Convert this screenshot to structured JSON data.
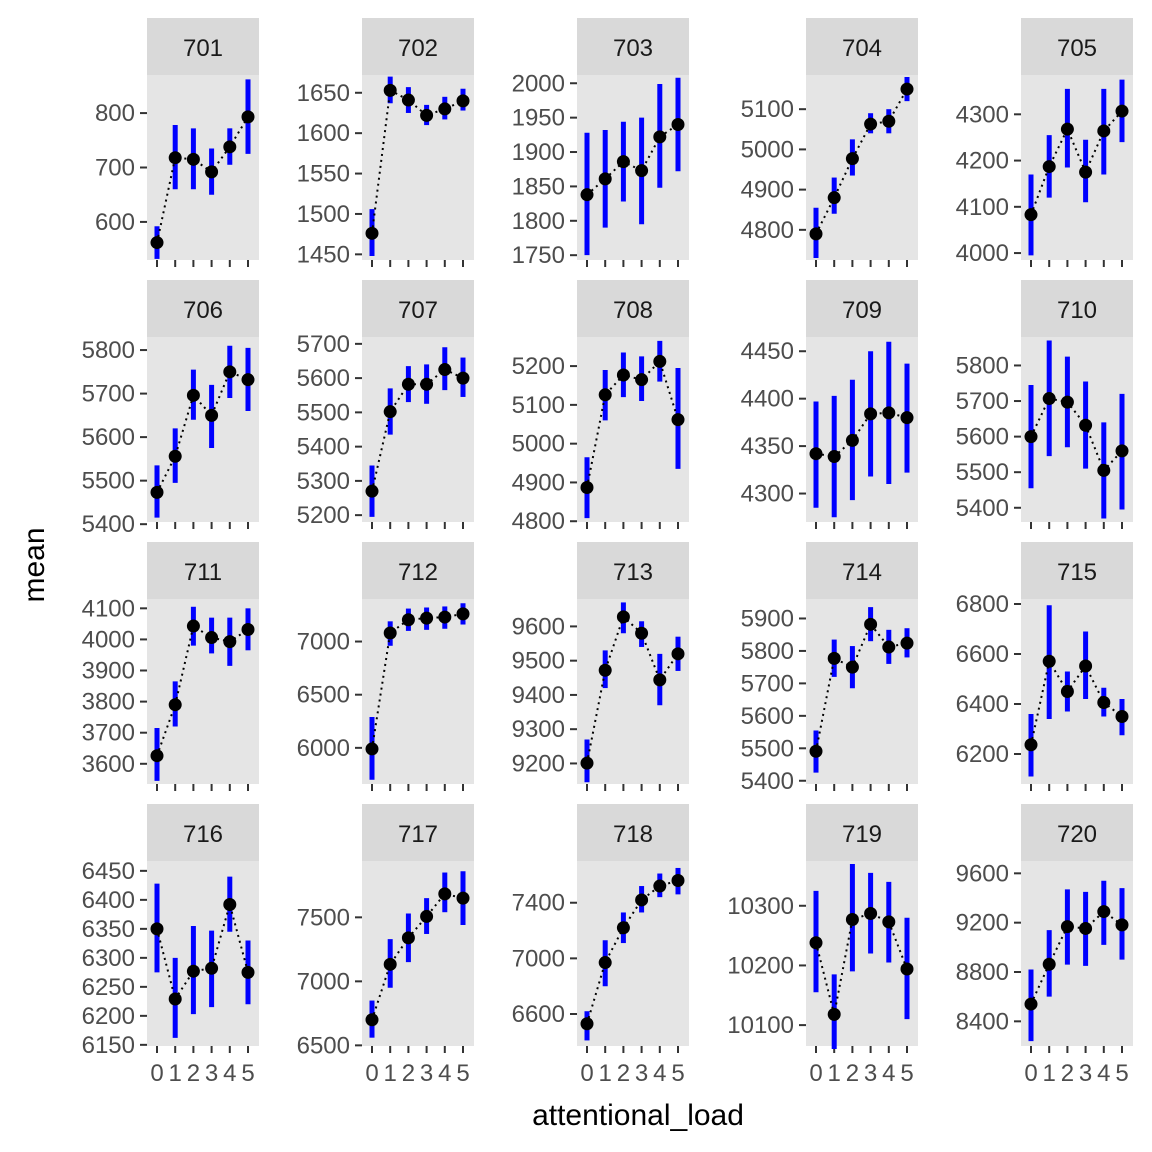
{
  "chart_data": {
    "type": "scatter",
    "facet_by": "participant",
    "xlabel": "attentional_load",
    "ylabel": "mean",
    "x": [
      0,
      1,
      2,
      3,
      4,
      5
    ],
    "x_tick_labels": [
      "0",
      "1",
      "2",
      "3",
      "4",
      "5"
    ],
    "grid": false,
    "legend": "none",
    "point_color": "#000000",
    "errorbar_color": "#0000ff",
    "line_style": "dotted",
    "panel_background": "#e5e5e5",
    "strip_background": "#d9d9d9",
    "panels": [
      {
        "label": "701",
        "ylim": [
          530,
          870
        ],
        "yticks": [
          600,
          700,
          800
        ],
        "mean": [
          562,
          718,
          715,
          692,
          738,
          793
        ],
        "lower": [
          532,
          660,
          660,
          650,
          705,
          725
        ],
        "upper": [
          592,
          778,
          772,
          735,
          772,
          862
        ]
      },
      {
        "label": "702",
        "ylim": [
          1443,
          1672
        ],
        "yticks": [
          1450,
          1500,
          1550,
          1600,
          1650
        ],
        "mean": [
          1476,
          1653,
          1641,
          1622,
          1630,
          1640
        ],
        "lower": [
          1448,
          1637,
          1625,
          1610,
          1617,
          1628
        ],
        "upper": [
          1506,
          1670,
          1657,
          1635,
          1645,
          1655
        ]
      },
      {
        "label": "703",
        "ylim": [
          1743,
          2012
        ],
        "yticks": [
          1750,
          1800,
          1850,
          1900,
          1950,
          2000
        ],
        "mean": [
          1838,
          1861,
          1886,
          1873,
          1922,
          1940
        ],
        "lower": [
          1750,
          1790,
          1828,
          1795,
          1848,
          1872
        ],
        "upper": [
          1928,
          1932,
          1944,
          1950,
          1999,
          2008
        ]
      },
      {
        "label": "704",
        "ylim": [
          4725,
          5185
        ],
        "yticks": [
          4800,
          4900,
          5000,
          5100
        ],
        "mean": [
          4790,
          4880,
          4977,
          5063,
          5070,
          5150
        ],
        "lower": [
          4730,
          4840,
          4935,
          5040,
          5040,
          5120
        ],
        "upper": [
          4855,
          4930,
          5025,
          5090,
          5100,
          5180
        ]
      },
      {
        "label": "705",
        "ylim": [
          3985,
          4385
        ],
        "yticks": [
          4000,
          4100,
          4200,
          4300
        ],
        "mean": [
          4083,
          4187,
          4268,
          4175,
          4264,
          4307
        ],
        "lower": [
          3995,
          4120,
          4185,
          4110,
          4170,
          4240
        ],
        "upper": [
          4170,
          4255,
          4355,
          4245,
          4355,
          4375
        ]
      },
      {
        "label": "706",
        "ylim": [
          5405,
          5830
        ],
        "yticks": [
          5400,
          5500,
          5600,
          5700,
          5800
        ],
        "mean": [
          5473,
          5556,
          5696,
          5650,
          5750,
          5732
        ],
        "lower": [
          5415,
          5495,
          5640,
          5575,
          5690,
          5660
        ],
        "upper": [
          5535,
          5620,
          5755,
          5720,
          5810,
          5805
        ]
      },
      {
        "label": "707",
        "ylim": [
          5180,
          5720
        ],
        "yticks": [
          5200,
          5300,
          5400,
          5500,
          5600,
          5700
        ],
        "mean": [
          5270,
          5502,
          5582,
          5582,
          5625,
          5600
        ],
        "lower": [
          5195,
          5435,
          5530,
          5525,
          5565,
          5545
        ],
        "upper": [
          5345,
          5570,
          5635,
          5640,
          5690,
          5660
        ]
      },
      {
        "label": "708",
        "ylim": [
          4798,
          5275
        ],
        "yticks": [
          4800,
          4900,
          5000,
          5100,
          5200
        ],
        "mean": [
          4887,
          5126,
          5177,
          5165,
          5212,
          5062
        ],
        "lower": [
          4808,
          5060,
          5120,
          5110,
          5160,
          4935
        ],
        "upper": [
          4965,
          5190,
          5235,
          5225,
          5265,
          5195
        ]
      },
      {
        "label": "709",
        "ylim": [
          4270,
          4465
        ],
        "yticks": [
          4300,
          4350,
          4400,
          4450
        ],
        "mean": [
          4342,
          4339,
          4356,
          4384,
          4385,
          4380
        ],
        "lower": [
          4285,
          4275,
          4293,
          4318,
          4310,
          4322
        ],
        "upper": [
          4397,
          4403,
          4420,
          4450,
          4460,
          4437
        ]
      },
      {
        "label": "710",
        "ylim": [
          5360,
          5880
        ],
        "yticks": [
          5400,
          5500,
          5600,
          5700,
          5800
        ],
        "mean": [
          5600,
          5707,
          5697,
          5632,
          5505,
          5560
        ],
        "lower": [
          5455,
          5545,
          5570,
          5510,
          5370,
          5395
        ],
        "upper": [
          5745,
          5870,
          5825,
          5755,
          5640,
          5720
        ]
      },
      {
        "label": "711",
        "ylim": [
          3535,
          4130
        ],
        "yticks": [
          3600,
          3700,
          3800,
          3900,
          4000,
          4100
        ],
        "mean": [
          3626,
          3790,
          4043,
          4006,
          3993,
          4032
        ],
        "lower": [
          3545,
          3720,
          3980,
          3955,
          3915,
          3965
        ],
        "upper": [
          3715,
          3865,
          4105,
          4070,
          4070,
          4100
        ]
      },
      {
        "label": "712",
        "ylim": [
          5660,
          7400
        ],
        "yticks": [
          6000,
          6500,
          7000
        ],
        "mean": [
          5990,
          7080,
          7205,
          7220,
          7230,
          7260
        ],
        "lower": [
          5700,
          6960,
          7100,
          7110,
          7120,
          7160
        ],
        "upper": [
          6290,
          7190,
          7310,
          7320,
          7330,
          7360
        ]
      },
      {
        "label": "713",
        "ylim": [
          9140,
          9680
        ],
        "yticks": [
          9200,
          9300,
          9400,
          9500,
          9600
        ],
        "mean": [
          9201,
          9472,
          9628,
          9580,
          9444,
          9520
        ],
        "lower": [
          9145,
          9420,
          9580,
          9540,
          9370,
          9470
        ],
        "upper": [
          9270,
          9530,
          9670,
          9615,
          9520,
          9570
        ]
      },
      {
        "label": "714",
        "ylim": [
          5390,
          5960
        ],
        "yticks": [
          5400,
          5500,
          5600,
          5700,
          5800,
          5900
        ],
        "mean": [
          5491,
          5777,
          5750,
          5882,
          5812,
          5824
        ],
        "lower": [
          5425,
          5720,
          5685,
          5830,
          5760,
          5780
        ],
        "upper": [
          5555,
          5835,
          5815,
          5935,
          5865,
          5870
        ]
      },
      {
        "label": "715",
        "ylim": [
          6080,
          6820
        ],
        "yticks": [
          6200,
          6400,
          6600,
          6800
        ],
        "mean": [
          6237,
          6571,
          6450,
          6552,
          6406,
          6350
        ],
        "lower": [
          6110,
          6340,
          6370,
          6420,
          6350,
          6275
        ],
        "upper": [
          6360,
          6795,
          6530,
          6690,
          6465,
          6420
        ]
      },
      {
        "label": "716",
        "ylim": [
          6148,
          6467
        ],
        "yticks": [
          6150,
          6200,
          6250,
          6300,
          6350,
          6400,
          6450
        ],
        "mean": [
          6350,
          6229,
          6277,
          6282,
          6392,
          6275
        ],
        "lower": [
          6275,
          6162,
          6203,
          6215,
          6345,
          6220
        ],
        "upper": [
          6428,
          6300,
          6355,
          6347,
          6440,
          6330
        ]
      },
      {
        "label": "717",
        "ylim": [
          6495,
          7940
        ],
        "yticks": [
          6500,
          7000,
          7500
        ],
        "mean": [
          6700,
          7133,
          7340,
          7507,
          7683,
          7650
        ],
        "lower": [
          6560,
          6950,
          7150,
          7370,
          7540,
          7440
        ],
        "upper": [
          6850,
          7330,
          7530,
          7650,
          7850,
          7860
        ]
      },
      {
        "label": "718",
        "ylim": [
          6370,
          7700
        ],
        "yticks": [
          6600,
          7000,
          7400
        ],
        "mean": [
          6530,
          6970,
          7220,
          7420,
          7520,
          7560
        ],
        "lower": [
          6410,
          6800,
          7110,
          7330,
          7440,
          7460
        ],
        "upper": [
          6620,
          7130,
          7330,
          7520,
          7610,
          7650
        ]
      },
      {
        "label": "719",
        "ylim": [
          10065,
          10375
        ],
        "yticks": [
          10100,
          10200,
          10300
        ],
        "mean": [
          10238,
          10118,
          10277,
          10287,
          10273,
          10194
        ],
        "lower": [
          10155,
          10060,
          10190,
          10220,
          10205,
          10110
        ],
        "upper": [
          10325,
          10185,
          10370,
          10355,
          10340,
          10280
        ]
      },
      {
        "label": "720",
        "ylim": [
          8200,
          9700
        ],
        "yticks": [
          8400,
          8800,
          9200,
          9600
        ],
        "mean": [
          8540,
          8863,
          9168,
          9153,
          9290,
          9182
        ],
        "lower": [
          8240,
          8600,
          8860,
          8850,
          9020,
          8900
        ],
        "upper": [
          8820,
          9140,
          9470,
          9450,
          9540,
          9480
        ]
      }
    ]
  }
}
